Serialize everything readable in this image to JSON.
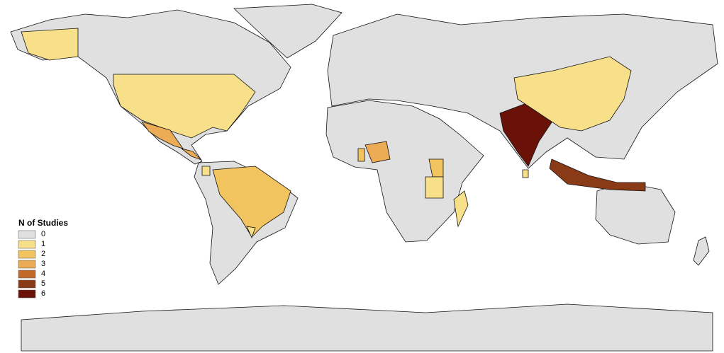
{
  "legend": {
    "title": "N of Studies",
    "levels": [
      0,
      1,
      2,
      3,
      4,
      5,
      6
    ],
    "colors": [
      "#e0e0e0",
      "#f8e08a",
      "#f2c460",
      "#ecab55",
      "#c06a2a",
      "#8b3a18",
      "#6b1208"
    ]
  },
  "regions": [
    1,
    1,
    3,
    3,
    2,
    1,
    1,
    3,
    2,
    2,
    1,
    1,
    6,
    1,
    1,
    5
  ]
}
